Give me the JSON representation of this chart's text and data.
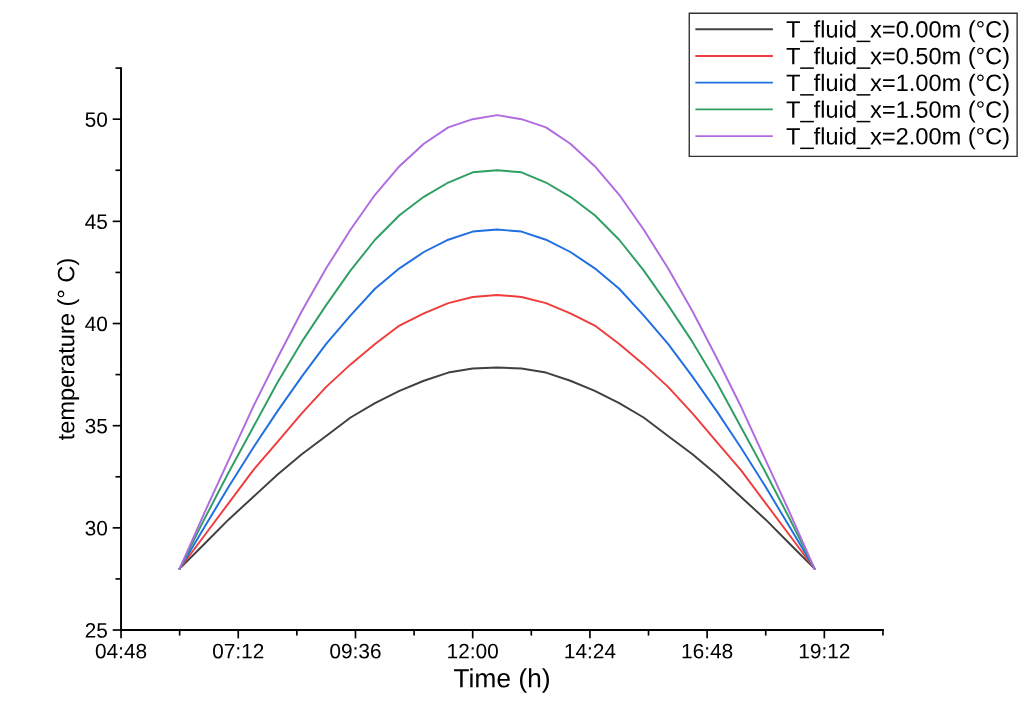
{
  "chart_data": {
    "type": "line",
    "xlabel": "Time (h)",
    "ylabel": "temperature (° C)",
    "x": [
      6.0,
      6.5,
      7.0,
      7.5,
      8.0,
      8.5,
      9.0,
      9.5,
      10.0,
      10.5,
      11.0,
      11.5,
      12.0,
      12.5,
      13.0,
      13.5,
      14.0,
      14.5,
      15.0,
      15.5,
      16.0,
      16.5,
      17.0,
      17.5,
      18.0,
      18.5,
      19.0
    ],
    "series": [
      {
        "name": "T_fluid_x=0.00m (°C)",
        "color": "#404040",
        "values": [
          28.0,
          29.2,
          30.4,
          31.5,
          32.6,
          33.6,
          34.5,
          35.4,
          36.1,
          36.7,
          37.2,
          37.6,
          37.8,
          37.85,
          37.8,
          37.6,
          37.2,
          36.7,
          36.1,
          35.4,
          34.5,
          33.6,
          32.6,
          31.5,
          30.4,
          29.2,
          28.0
        ]
      },
      {
        "name": "T_fluid_x=0.50m (°C)",
        "color": "#f03c3c",
        "values": [
          28.0,
          29.6,
          31.2,
          32.8,
          34.2,
          35.6,
          36.9,
          38.0,
          39.0,
          39.9,
          40.5,
          41.0,
          41.3,
          41.4,
          41.3,
          41.0,
          40.5,
          39.9,
          39.0,
          38.0,
          36.9,
          35.6,
          34.2,
          32.8,
          31.2,
          29.6,
          28.0
        ]
      },
      {
        "name": "T_fluid_x=1.00m (°C)",
        "color": "#1f6fe0",
        "values": [
          28.0,
          30.0,
          32.0,
          33.9,
          35.7,
          37.4,
          39.0,
          40.4,
          41.7,
          42.7,
          43.5,
          44.1,
          44.5,
          44.6,
          44.5,
          44.1,
          43.5,
          42.7,
          41.7,
          40.4,
          39.0,
          37.4,
          35.7,
          33.9,
          32.0,
          30.0,
          28.0
        ]
      },
      {
        "name": "T_fluid_x=1.50m (°C)",
        "color": "#2e9e62",
        "values": [
          28.0,
          30.4,
          32.7,
          34.9,
          37.1,
          39.1,
          40.9,
          42.6,
          44.1,
          45.3,
          46.2,
          46.9,
          47.4,
          47.5,
          47.4,
          46.9,
          46.2,
          45.3,
          44.1,
          42.6,
          40.9,
          39.1,
          37.1,
          34.9,
          32.7,
          30.4,
          28.0
        ]
      },
      {
        "name": "T_fluid_x=2.00m (°C)",
        "color": "#b06be0",
        "values": [
          28.0,
          30.7,
          33.3,
          35.9,
          38.3,
          40.6,
          42.7,
          44.6,
          46.3,
          47.7,
          48.8,
          49.6,
          50.0,
          50.2,
          50.0,
          49.6,
          48.8,
          47.7,
          46.3,
          44.6,
          42.7,
          40.6,
          38.3,
          35.9,
          33.3,
          30.7,
          28.0
        ]
      }
    ],
    "xlim": [
      4.8,
      20.4
    ],
    "xticks": [
      {
        "value": 4.8,
        "label": "04:48"
      },
      {
        "value": 7.2,
        "label": "07:12"
      },
      {
        "value": 9.6,
        "label": "09:36"
      },
      {
        "value": 12.0,
        "label": "12:00"
      },
      {
        "value": 14.4,
        "label": "14:24"
      },
      {
        "value": 16.8,
        "label": "16:48"
      },
      {
        "value": 19.2,
        "label": "19:12"
      }
    ],
    "ylim": [
      25,
      52.5
    ],
    "yticks": [
      25,
      30,
      35,
      40,
      45,
      50
    ],
    "grid": false,
    "legend": "top right",
    "marker": "none",
    "line_style": "solid"
  }
}
